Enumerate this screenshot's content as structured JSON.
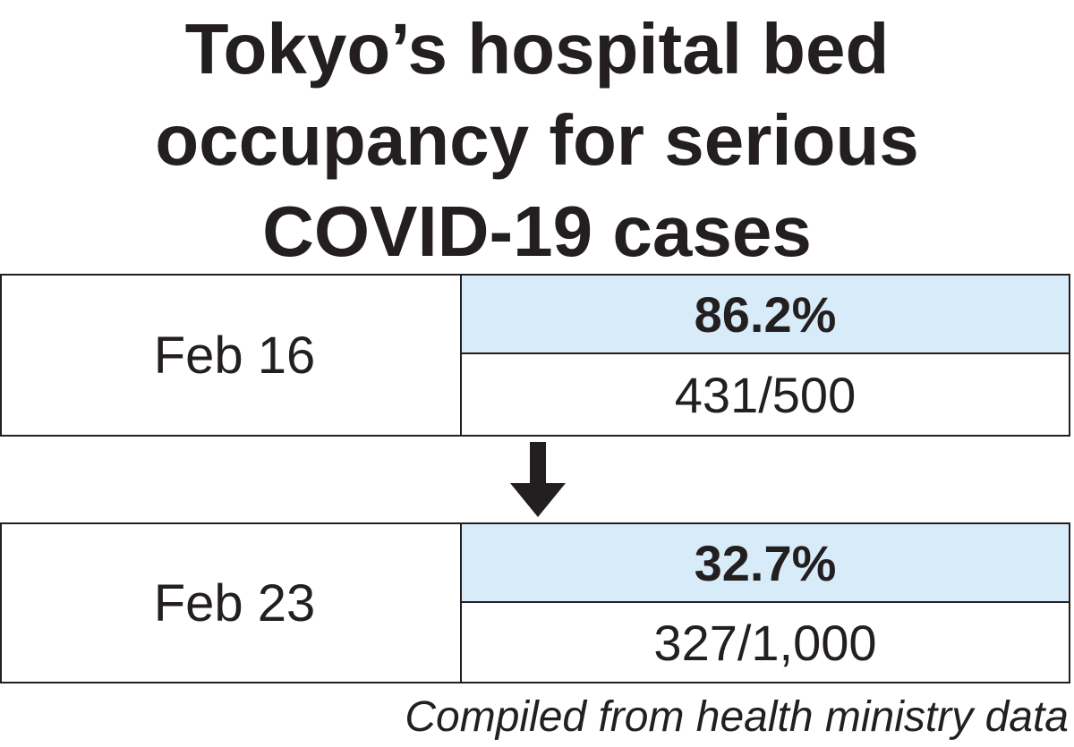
{
  "title": {
    "line1": "Tokyo’s hospital bed",
    "line2": "occupancy for serious",
    "line3": "COVID-19 cases"
  },
  "rows": [
    {
      "date": "Feb 16",
      "rate": "86.2%",
      "count": "431/500"
    },
    {
      "date": "Feb 23",
      "rate": "32.7%",
      "count": "327/1,000"
    }
  ],
  "arrow_icon": "down-arrow-icon",
  "source": "Compiled from health ministry data",
  "colors": {
    "highlight": "#d7ecf8",
    "text": "#231f20"
  }
}
